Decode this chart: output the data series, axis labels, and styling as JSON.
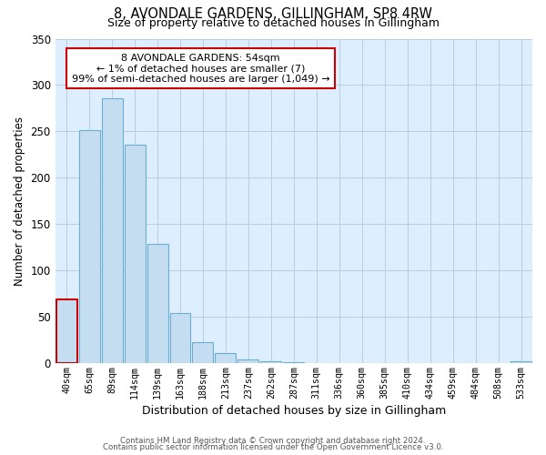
{
  "title": "8, AVONDALE GARDENS, GILLINGHAM, SP8 4RW",
  "subtitle": "Size of property relative to detached houses in Gillingham",
  "xlabel": "Distribution of detached houses by size in Gillingham",
  "ylabel": "Number of detached properties",
  "bar_labels": [
    "40sqm",
    "65sqm",
    "89sqm",
    "114sqm",
    "139sqm",
    "163sqm",
    "188sqm",
    "213sqm",
    "237sqm",
    "262sqm",
    "287sqm",
    "311sqm",
    "336sqm",
    "360sqm",
    "385sqm",
    "410sqm",
    "434sqm",
    "459sqm",
    "484sqm",
    "508sqm",
    "533sqm"
  ],
  "bar_values": [
    69,
    251,
    286,
    236,
    128,
    54,
    22,
    11,
    4,
    2,
    1,
    0,
    0,
    0,
    0,
    0,
    0,
    0,
    0,
    0,
    2
  ],
  "bar_color": "#c5ddf0",
  "bar_edge_color": "#6aaed6",
  "highlight_bar_index": 0,
  "highlight_bar_edge_color": "#cc0000",
  "annotation_box_text": "8 AVONDALE GARDENS: 54sqm\n← 1% of detached houses are smaller (7)\n99% of semi-detached houses are larger (1,049) →",
  "annotation_box_edge_color": "#cc0000",
  "ylim": [
    0,
    350
  ],
  "yticks": [
    0,
    50,
    100,
    150,
    200,
    250,
    300,
    350
  ],
  "footer_line1": "Contains HM Land Registry data © Crown copyright and database right 2024.",
  "footer_line2": "Contains public sector information licensed under the Open Government Licence v3.0.",
  "background_color": "#ffffff",
  "plot_bg_color": "#ddeeff",
  "grid_color": "#b8cfe0"
}
